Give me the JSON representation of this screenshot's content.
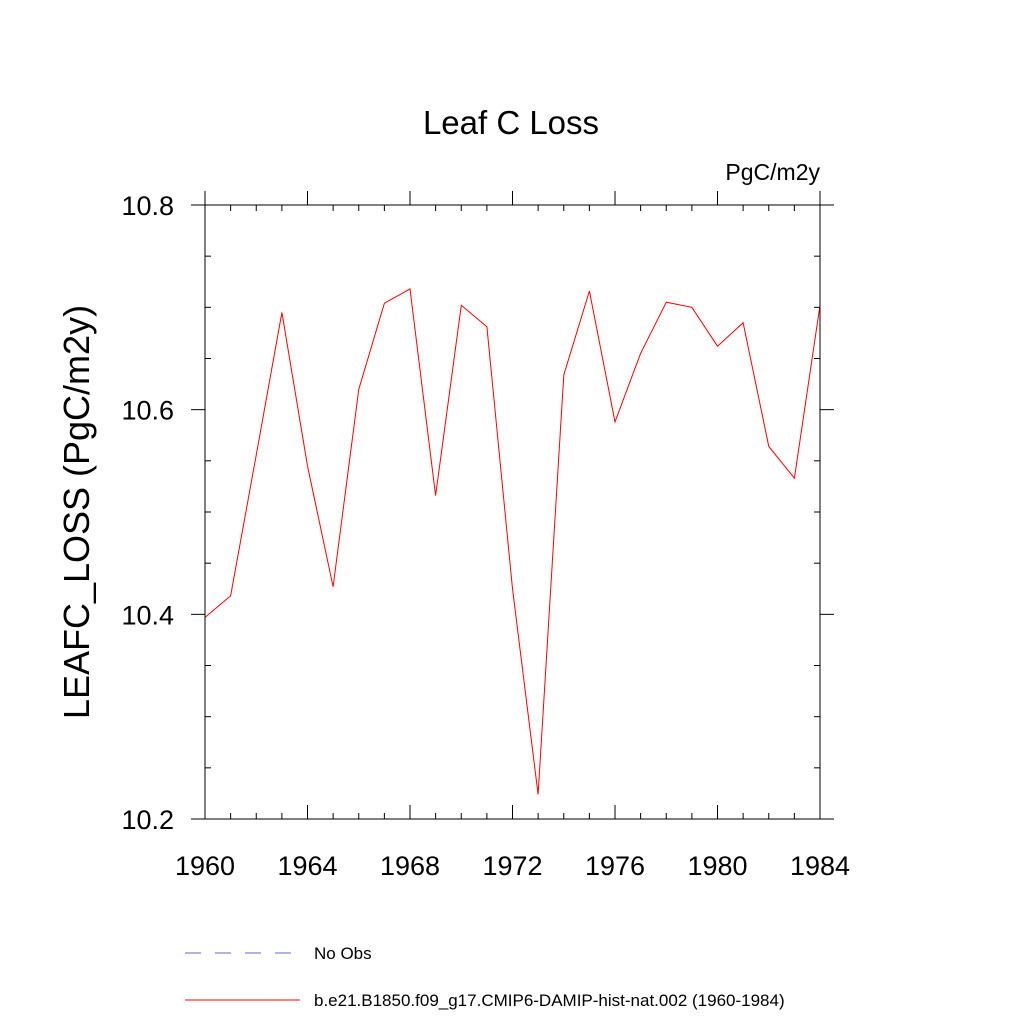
{
  "chart_data": {
    "type": "line",
    "title": "Leaf C Loss",
    "units": "PgC/m2y",
    "ylabel": "LEAFC_LOSS  (PgC/m2y)",
    "xlabel": "",
    "xlim": [
      1960,
      1984
    ],
    "ylim": [
      10.2,
      10.8
    ],
    "x_ticks": [
      1960,
      1964,
      1968,
      1972,
      1976,
      1980,
      1984
    ],
    "y_ticks": [
      10.2,
      10.4,
      10.6,
      10.8
    ],
    "x_tick_labels": [
      "1960",
      "1964",
      "1968",
      "1972",
      "1976",
      "1980",
      "1984"
    ],
    "y_tick_labels": [
      "10.2",
      "10.4",
      "10.6",
      "10.8"
    ],
    "x_minor_step": 1,
    "y_minor_step": 0.05,
    "grid": false,
    "legend_position": "bottom",
    "series": [
      {
        "name": "b.e21.B1850.f09_g17.CMIP6-DAMIP-hist-nat.002 (1960-1984)",
        "color": "#ff0000",
        "style": "solid",
        "x": [
          1960,
          1961,
          1962,
          1963,
          1964,
          1965,
          1966,
          1967,
          1968,
          1969,
          1970,
          1971,
          1972,
          1973,
          1974,
          1975,
          1976,
          1977,
          1978,
          1979,
          1980,
          1981,
          1982,
          1983,
          1984
        ],
        "y": [
          10.397,
          10.418,
          10.556,
          10.695,
          10.545,
          10.427,
          10.62,
          10.704,
          10.718,
          10.516,
          10.702,
          10.681,
          10.425,
          10.224,
          10.634,
          10.716,
          10.588,
          10.655,
          10.705,
          10.7,
          10.662,
          10.685,
          10.564,
          10.533,
          10.702
        ]
      }
    ],
    "legend": [
      {
        "label": "No Obs",
        "color": "#6666cc",
        "style": "dashed"
      },
      {
        "label": "b.e21.B1850.f09_g17.CMIP6-DAMIP-hist-nat.002 (1960-1984)",
        "color": "#ff0000",
        "style": "solid"
      }
    ]
  }
}
